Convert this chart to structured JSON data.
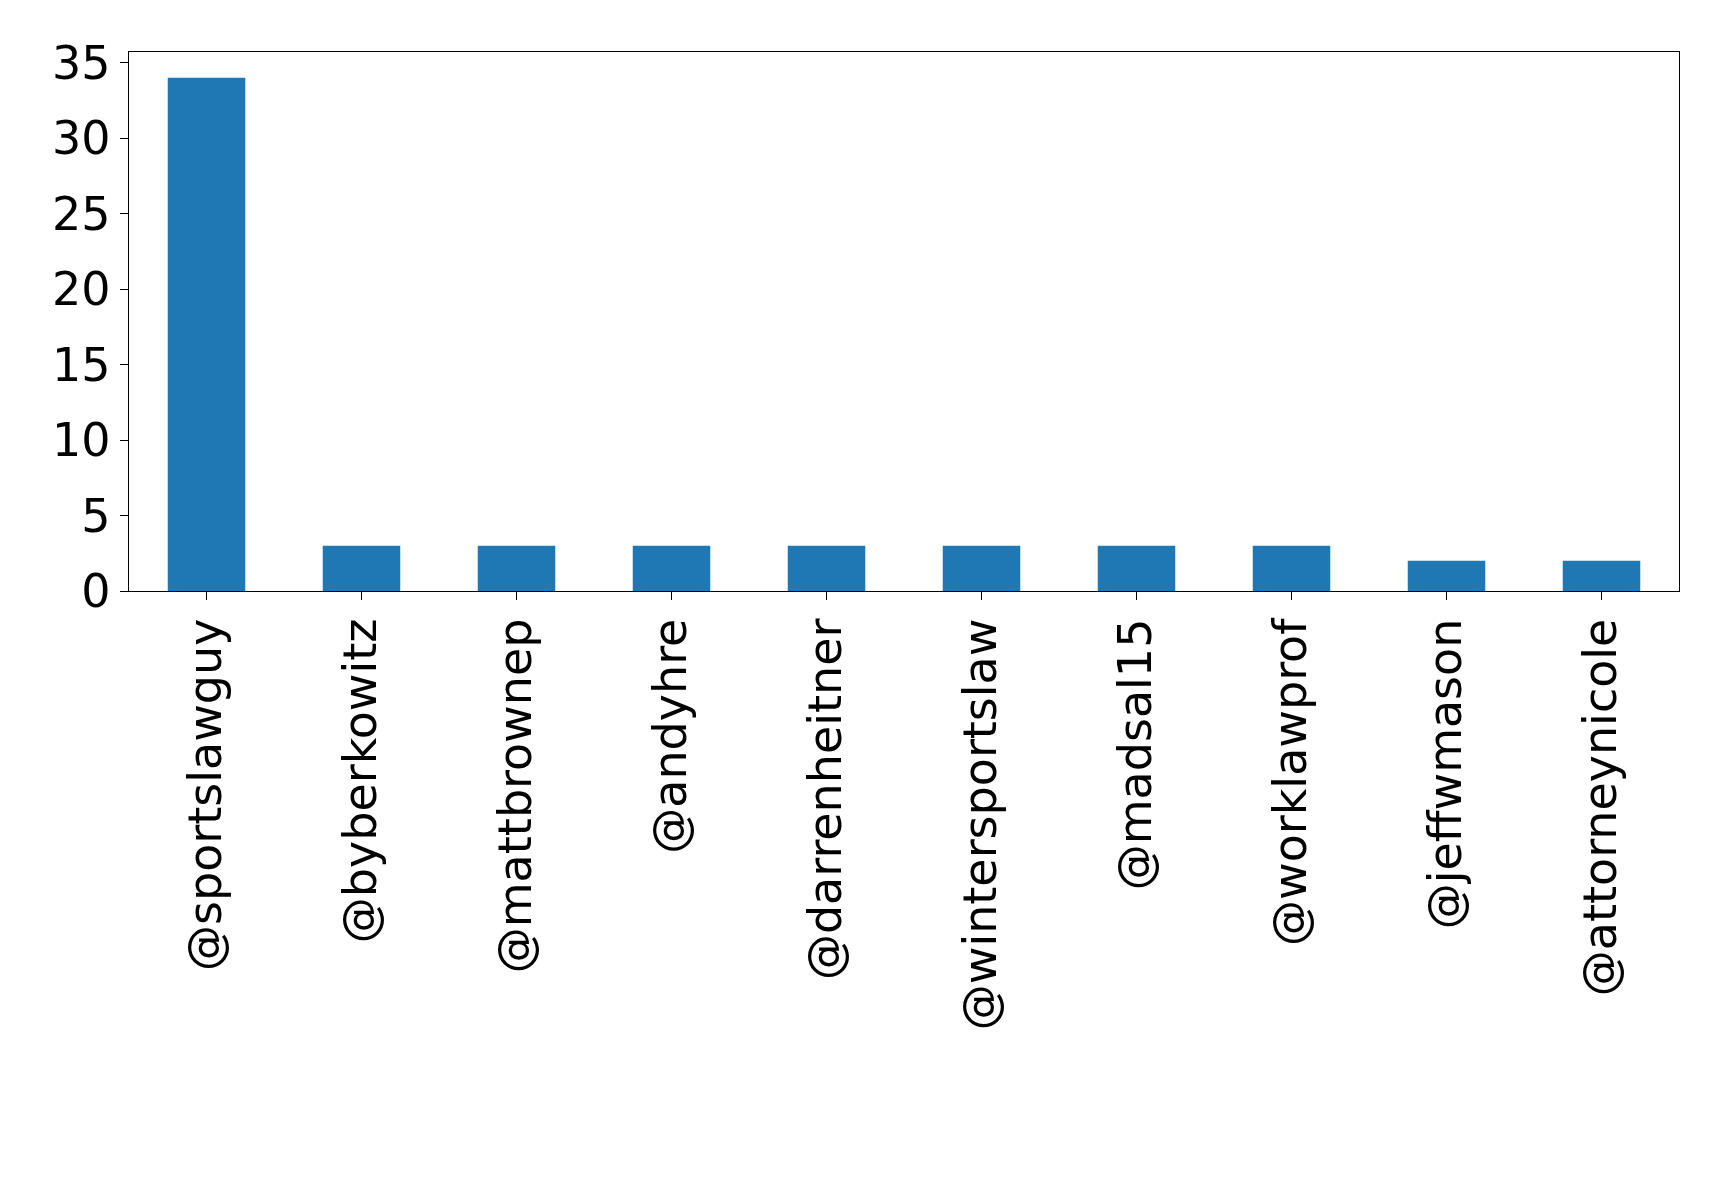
{
  "chart_data": {
    "type": "bar",
    "categories": [
      "@sportslawguy",
      "@byberkowitz",
      "@mattbrownep",
      "@andyhre",
      "@darrenheitner",
      "@wintersportslaw",
      "@madsal15",
      "@worklawprof",
      "@jeffwmason",
      "@attorneynicole"
    ],
    "values": [
      34,
      3,
      3,
      3,
      3,
      3,
      3,
      3,
      2,
      2
    ],
    "color": "#1f77b4",
    "ylim": [
      0,
      35.7
    ],
    "yticks": [
      0,
      5,
      10,
      15,
      20,
      25,
      30,
      35
    ],
    "grid": false,
    "legend": false
  }
}
